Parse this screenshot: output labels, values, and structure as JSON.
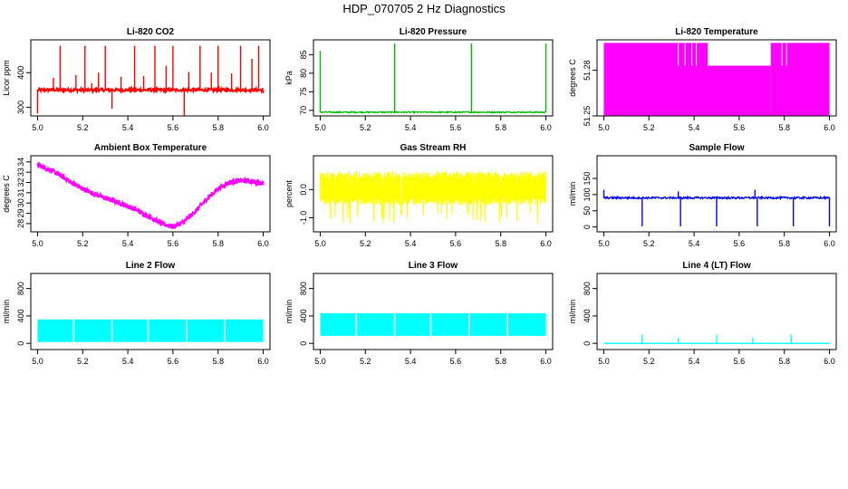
{
  "page": {
    "title": "HDP_070705  2 Hz Diagnostics"
  },
  "chart_data": [
    {
      "type": "line",
      "title": "Li-820 CO2",
      "xlabel": "",
      "ylabel": "Licor ppm",
      "xlim": [
        4.97,
        6.03
      ],
      "ylim": [
        275,
        495
      ],
      "xticks": [
        5.0,
        5.2,
        5.4,
        5.6,
        5.8,
        6.0
      ],
      "yticks": [
        300,
        400
      ],
      "color": "#ff0000",
      "series": [
        {
          "baseline": 350,
          "noise": 4,
          "spikes": [
            {
              "x": 5.0,
              "y": 282
            },
            {
              "x": 5.07,
              "y": 385
            },
            {
              "x": 5.1,
              "y": 478
            },
            {
              "x": 5.17,
              "y": 393
            },
            {
              "x": 5.21,
              "y": 478
            },
            {
              "x": 5.24,
              "y": 370
            },
            {
              "x": 5.27,
              "y": 400
            },
            {
              "x": 5.3,
              "y": 478
            },
            {
              "x": 5.33,
              "y": 296
            },
            {
              "x": 5.37,
              "y": 388
            },
            {
              "x": 5.43,
              "y": 478
            },
            {
              "x": 5.47,
              "y": 390
            },
            {
              "x": 5.52,
              "y": 478
            },
            {
              "x": 5.57,
              "y": 420
            },
            {
              "x": 5.6,
              "y": 478
            },
            {
              "x": 5.65,
              "y": 275
            },
            {
              "x": 5.67,
              "y": 402
            },
            {
              "x": 5.72,
              "y": 478
            },
            {
              "x": 5.77,
              "y": 400
            },
            {
              "x": 5.8,
              "y": 478
            },
            {
              "x": 5.86,
              "y": 398
            },
            {
              "x": 5.9,
              "y": 478
            },
            {
              "x": 5.95,
              "y": 440
            },
            {
              "x": 5.98,
              "y": 478
            },
            {
              "x": 6.0,
              "y": 340
            }
          ]
        }
      ]
    },
    {
      "type": "line",
      "title": "Li-820 Pressure",
      "xlabel": "",
      "ylabel": "kPa",
      "xlim": [
        4.97,
        6.03
      ],
      "ylim": [
        68.5,
        89
      ],
      "xticks": [
        5.0,
        5.2,
        5.4,
        5.6,
        5.8,
        6.0
      ],
      "yticks": [
        70,
        75,
        80,
        85
      ],
      "color": "#00bb00",
      "series": [
        {
          "baseline": 69.5,
          "noise": 0.15,
          "spikes": [
            {
              "x": 5.0,
              "y": 86
            },
            {
              "x": 5.33,
              "y": 88
            },
            {
              "x": 5.67,
              "y": 88
            },
            {
              "x": 6.0,
              "y": 88
            }
          ]
        }
      ]
    },
    {
      "type": "line",
      "title": "Li-820 Temperature",
      "xlabel": "",
      "ylabel": "degrees C",
      "xlim": [
        4.97,
        6.03
      ],
      "ylim": [
        51.25,
        51.3
      ],
      "xticks": [
        5.0,
        5.2,
        5.4,
        5.6,
        5.8,
        6.0
      ],
      "yticks": [
        51.25,
        51.28
      ],
      "color": "#ff00ff",
      "series": [
        {
          "low": 51.25,
          "high": 51.298,
          "mid": 51.283,
          "mid_range_x": [
            5.46,
            5.74
          ]
        }
      ]
    },
    {
      "type": "line",
      "title": "Ambient Box Temperature",
      "xlabel": "",
      "ylabel": "degrees C",
      "xlim": [
        4.97,
        6.03
      ],
      "ylim": [
        27.2,
        34.6
      ],
      "xticks": [
        5.0,
        5.2,
        5.4,
        5.6,
        5.8,
        6.0
      ],
      "yticks": [
        28,
        29,
        30,
        31,
        32,
        33,
        34
      ],
      "color": "#ff00ff",
      "series": [
        {
          "band": 0.5,
          "x": [
            5.0,
            5.05,
            5.1,
            5.15,
            5.2,
            5.25,
            5.3,
            5.35,
            5.4,
            5.45,
            5.5,
            5.55,
            5.6,
            5.65,
            5.7,
            5.75,
            5.8,
            5.85,
            5.9,
            5.95,
            6.0
          ],
          "y": [
            33.7,
            33.3,
            32.7,
            32.0,
            31.4,
            30.9,
            30.5,
            30.1,
            29.7,
            29.2,
            28.6,
            28.0,
            27.7,
            28.2,
            29.2,
            30.4,
            31.4,
            32.0,
            32.2,
            32.1,
            31.9
          ]
        }
      ]
    },
    {
      "type": "line",
      "title": "Gas Stream RH",
      "xlabel": "",
      "ylabel": "percent",
      "xlim": [
        4.97,
        6.03
      ],
      "ylim": [
        -1.5,
        1.2
      ],
      "xticks": [
        5.0,
        5.2,
        5.4,
        5.6,
        5.8,
        6.0
      ],
      "yticks": [
        -1.0,
        0.0
      ],
      "color": "#ffff00",
      "series": [
        {
          "center": 0.05,
          "amplitude": 0.6,
          "dips_to": -1.2
        }
      ]
    },
    {
      "type": "line",
      "title": "Sample Flow",
      "xlabel": "",
      "ylabel": "ml/min",
      "xlim": [
        4.97,
        6.03
      ],
      "ylim": [
        -15,
        220
      ],
      "xticks": [
        5.0,
        5.2,
        5.4,
        5.6,
        5.8,
        6.0
      ],
      "yticks": [
        0,
        50,
        100,
        150
      ],
      "color": "#0000ff",
      "series": [
        {
          "baseline": 90,
          "noise": 3,
          "spikes": [
            {
              "x": 5.0,
              "y": 115
            },
            {
              "x": 5.17,
              "y": 2
            },
            {
              "x": 5.33,
              "y": 110
            },
            {
              "x": 5.34,
              "y": 2
            },
            {
              "x": 5.5,
              "y": 2
            },
            {
              "x": 5.67,
              "y": 115
            },
            {
              "x": 5.68,
              "y": 2
            },
            {
              "x": 5.84,
              "y": 2
            },
            {
              "x": 6.0,
              "y": 2
            }
          ]
        }
      ]
    },
    {
      "type": "line",
      "title": "Line 2 Flow",
      "xlabel": "",
      "ylabel": "ml/min",
      "xlim": [
        4.97,
        6.03
      ],
      "ylim": [
        -90,
        1020
      ],
      "xticks": [
        5.0,
        5.2,
        5.4,
        5.6,
        5.8,
        6.0
      ],
      "yticks": [
        0,
        400,
        800
      ],
      "color": "#00ffff",
      "series": [
        {
          "low": 20,
          "high": 350,
          "gaps": [
            5.16,
            5.33,
            5.49,
            5.66,
            5.83
          ]
        }
      ]
    },
    {
      "type": "line",
      "title": "Line 3 Flow",
      "xlabel": "",
      "ylabel": "ml/min",
      "xlim": [
        4.97,
        6.03
      ],
      "ylim": [
        -90,
        1020
      ],
      "xticks": [
        5.0,
        5.2,
        5.4,
        5.6,
        5.8,
        6.0
      ],
      "yticks": [
        0,
        400,
        800
      ],
      "color": "#00ffff",
      "series": [
        {
          "low": 110,
          "high": 440,
          "gaps": [
            5.16,
            5.33,
            5.49,
            5.66,
            5.83
          ]
        }
      ]
    },
    {
      "type": "line",
      "title": "Line 4 (LT) Flow",
      "xlabel": "",
      "ylabel": "ml/min",
      "xlim": [
        4.97,
        6.03
      ],
      "ylim": [
        -90,
        1020
      ],
      "xticks": [
        5.0,
        5.2,
        5.4,
        5.6,
        5.8,
        6.0
      ],
      "yticks": [
        0,
        400,
        800
      ],
      "color": "#00ffff",
      "series": [
        {
          "baseline": 0,
          "spikes": [
            {
              "x": 5.17,
              "y": 130
            },
            {
              "x": 5.33,
              "y": 80
            },
            {
              "x": 5.5,
              "y": 130
            },
            {
              "x": 5.66,
              "y": 80
            },
            {
              "x": 5.83,
              "y": 130
            }
          ]
        }
      ]
    }
  ]
}
